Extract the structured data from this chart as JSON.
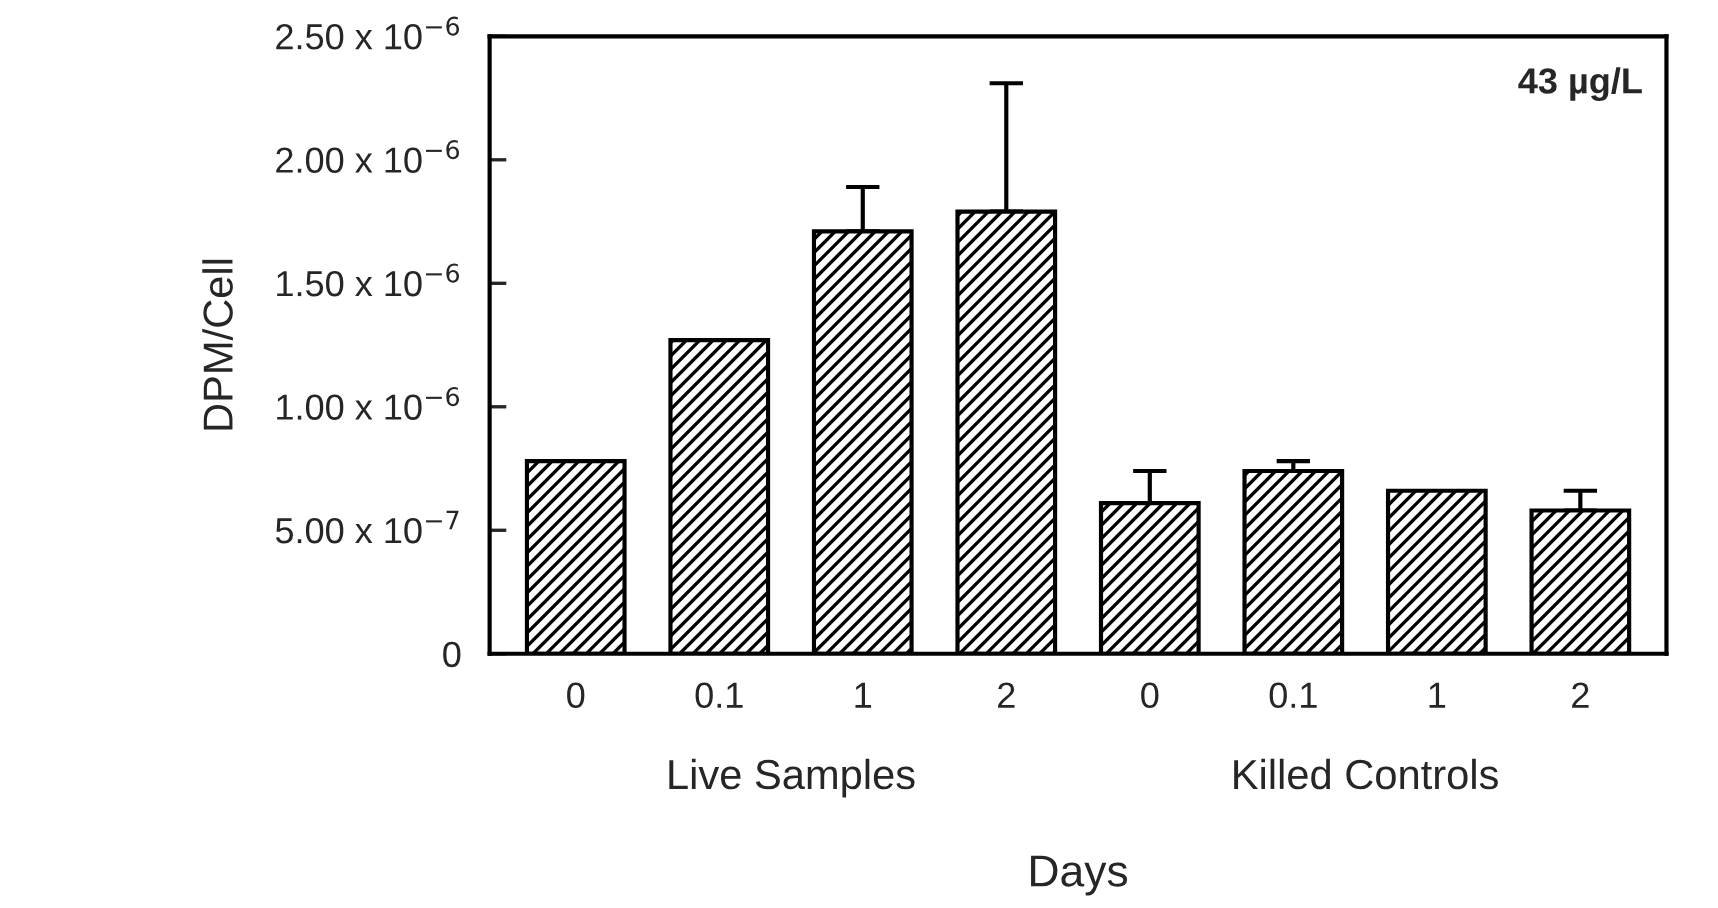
{
  "chart_data": {
    "type": "bar",
    "xlabel": "Days",
    "ylabel": "DPM/Cell",
    "categories": [
      "0",
      "0.1",
      "1",
      "2",
      "0",
      "0.1",
      "1",
      "2"
    ],
    "values": [
      7.8e-07,
      1.27e-06,
      1.71e-06,
      1.79e-06,
      6.1e-07,
      7.4e-07,
      6.6e-07,
      5.8e-07
    ],
    "errors": [
      null,
      null,
      [
        1.71e-06,
        1.89e-06
      ],
      [
        1.79e-06,
        2.31e-06
      ],
      [
        6.1e-07,
        7.4e-07
      ],
      [
        7.4e-07,
        7.8e-07
      ],
      null,
      [
        5.8e-07,
        6.6e-07
      ]
    ],
    "color": "#000000",
    "ylim": [
      0,
      2.5e-06
    ],
    "yticks": [
      0,
      {
        "value": 5e-07,
        "label": "5.00 x 10$^{−7}$"
      },
      {
        "value": 1e-06,
        "label": "1.00 x 10$^{−6}$"
      },
      {
        "value": 1.5e-06,
        "label": "1.50 x 10$^{−6}$"
      },
      {
        "value": 2e-06,
        "label": "2.00 x 10$^{−6}$"
      },
      {
        "value": 2.5e-06,
        "label": "2.50 x 10$^{−6}$"
      }
    ],
    "grid": false,
    "annotations": [
      "43 µg/L",
      "Live Samples",
      "Killed Controls"
    ]
  }
}
